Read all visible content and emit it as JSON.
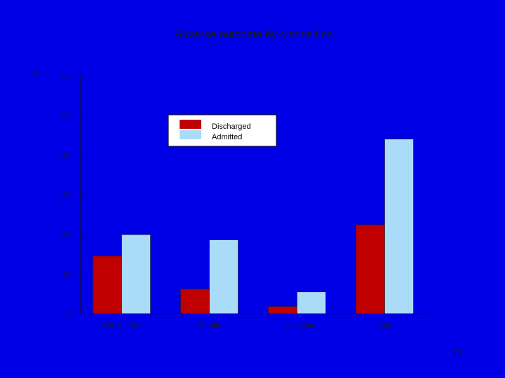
{
  "slide": {
    "background": "#0000e6",
    "page_number": "13"
  },
  "chart_data": {
    "type": "bar",
    "title": "Adverse outcome by disposition",
    "ylabel": "%",
    "xlabel": "",
    "categories": [
      "ADL decline",
      "Death",
      "Institution",
      "Any"
    ],
    "series": [
      {
        "name": "Discharged",
        "color": "#c00000",
        "values": [
          14.5,
          6.2,
          1.8,
          22.4
        ]
      },
      {
        "name": "Admitted",
        "color": "#aadcf8",
        "values": [
          19.9,
          18.6,
          5.5,
          44.0
        ]
      }
    ],
    "ylim": [
      0,
      60
    ],
    "yticks": [
      "0",
      "10",
      "20",
      "30",
      "40",
      "50",
      "60"
    ],
    "grid": false,
    "legend_position": "top-center"
  }
}
